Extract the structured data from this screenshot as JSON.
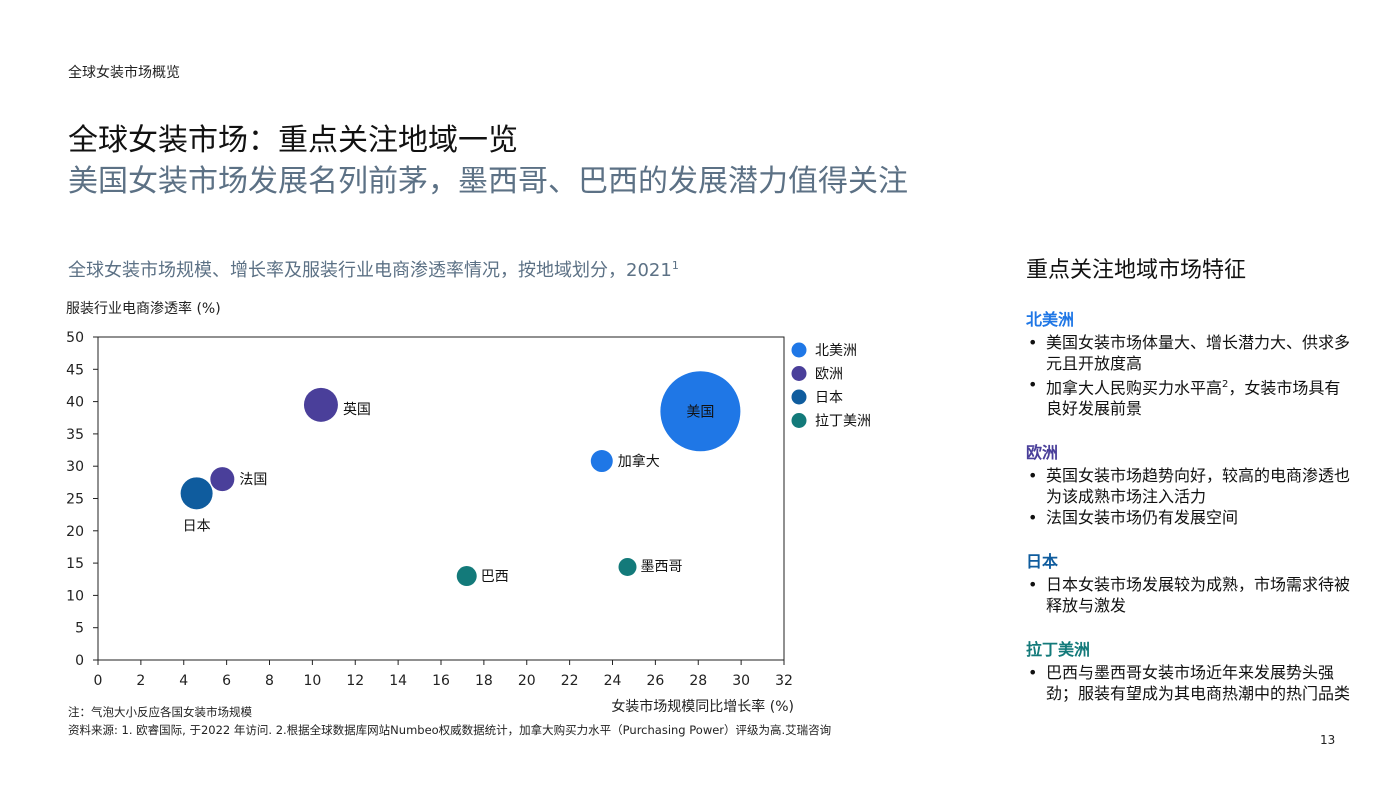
{
  "header": {
    "section_label": "全球女装市场概览",
    "title": "全球女装市场：重点关注地域一览",
    "subtitle": "美国女装市场发展名列前茅，墨西哥、巴西的发展潜力值得关注"
  },
  "chart_title": "全球女装市场规模、增长率及服装行业电商渗透率情况，按地域划分，2021",
  "chart_title_sup": "1",
  "chart_data": {
    "type": "scatter",
    "xlabel": "女装市场规模同比增长率 (%)",
    "ylabel": "服装行业电商渗透率 (%)",
    "xlim": [
      0,
      32
    ],
    "ylim": [
      0,
      50
    ],
    "xticks": [
      0,
      2,
      4,
      6,
      8,
      10,
      12,
      14,
      16,
      18,
      20,
      22,
      24,
      26,
      28,
      30,
      32
    ],
    "yticks": [
      0,
      5,
      10,
      15,
      20,
      25,
      30,
      35,
      40,
      45,
      50
    ],
    "grid": false,
    "legend_position": "right",
    "series": [
      {
        "name": "北美洲",
        "color": "#1f77e6",
        "points": [
          {
            "label": "美国",
            "x": 28.1,
            "y": 38.5,
            "size": 40
          },
          {
            "label": "加拿大",
            "x": 23.5,
            "y": 30.8,
            "size": 11
          }
        ]
      },
      {
        "name": "欧洲",
        "color": "#4a3f9a",
        "points": [
          {
            "label": "英国",
            "x": 10.4,
            "y": 39.5,
            "size": 17
          },
          {
            "label": "法国",
            "x": 5.8,
            "y": 28.0,
            "size": 12
          }
        ]
      },
      {
        "name": "日本",
        "color": "#0f5c9e",
        "points": [
          {
            "label": "日本",
            "x": 4.6,
            "y": 25.8,
            "size": 16
          }
        ]
      },
      {
        "name": "拉丁美洲",
        "color": "#137a7a",
        "points": [
          {
            "label": "巴西",
            "x": 17.2,
            "y": 13.0,
            "size": 10
          },
          {
            "label": "墨西哥",
            "x": 24.7,
            "y": 14.4,
            "size": 9
          }
        ]
      }
    ]
  },
  "notes": {
    "note": "注：气泡大小反应各国女装市场规模",
    "source": "资料来源: 1. 欧睿国际, 于2022 年访问. 2.根据全球数据库网站Numbeo权威数据统计，加拿大购买力水平（Purchasing Power）评级为高.艾瑞咨询"
  },
  "sidebar": {
    "title": "重点关注地域市场特征",
    "regions": [
      {
        "name": "北美洲",
        "color": "#1f77e6",
        "bullets": [
          {
            "text": "美国女装市场体量大、增长潜力大、供求多元且开放度高"
          },
          {
            "text": "加拿大人民购买力水平高",
            "sup": "2",
            "tail": "，女装市场具有良好发展前景"
          }
        ]
      },
      {
        "name": "欧洲",
        "color": "#4a3f9a",
        "bullets": [
          {
            "text": "英国女装市场趋势向好，较高的电商渗透也为该成熟市场注入活力"
          },
          {
            "text": "法国女装市场仍有发展空间"
          }
        ]
      },
      {
        "name": "日本",
        "color": "#0f5c9e",
        "bullets": [
          {
            "text": "日本女装市场发展较为成熟，市场需求待被释放与激发"
          }
        ]
      },
      {
        "name": "拉丁美洲",
        "color": "#137a7a",
        "bullets": [
          {
            "text": "巴西与墨西哥女装市场近年来发展势头强劲；服装有望成为其电商热潮中的热门品类"
          }
        ]
      }
    ]
  },
  "page_number": "13"
}
